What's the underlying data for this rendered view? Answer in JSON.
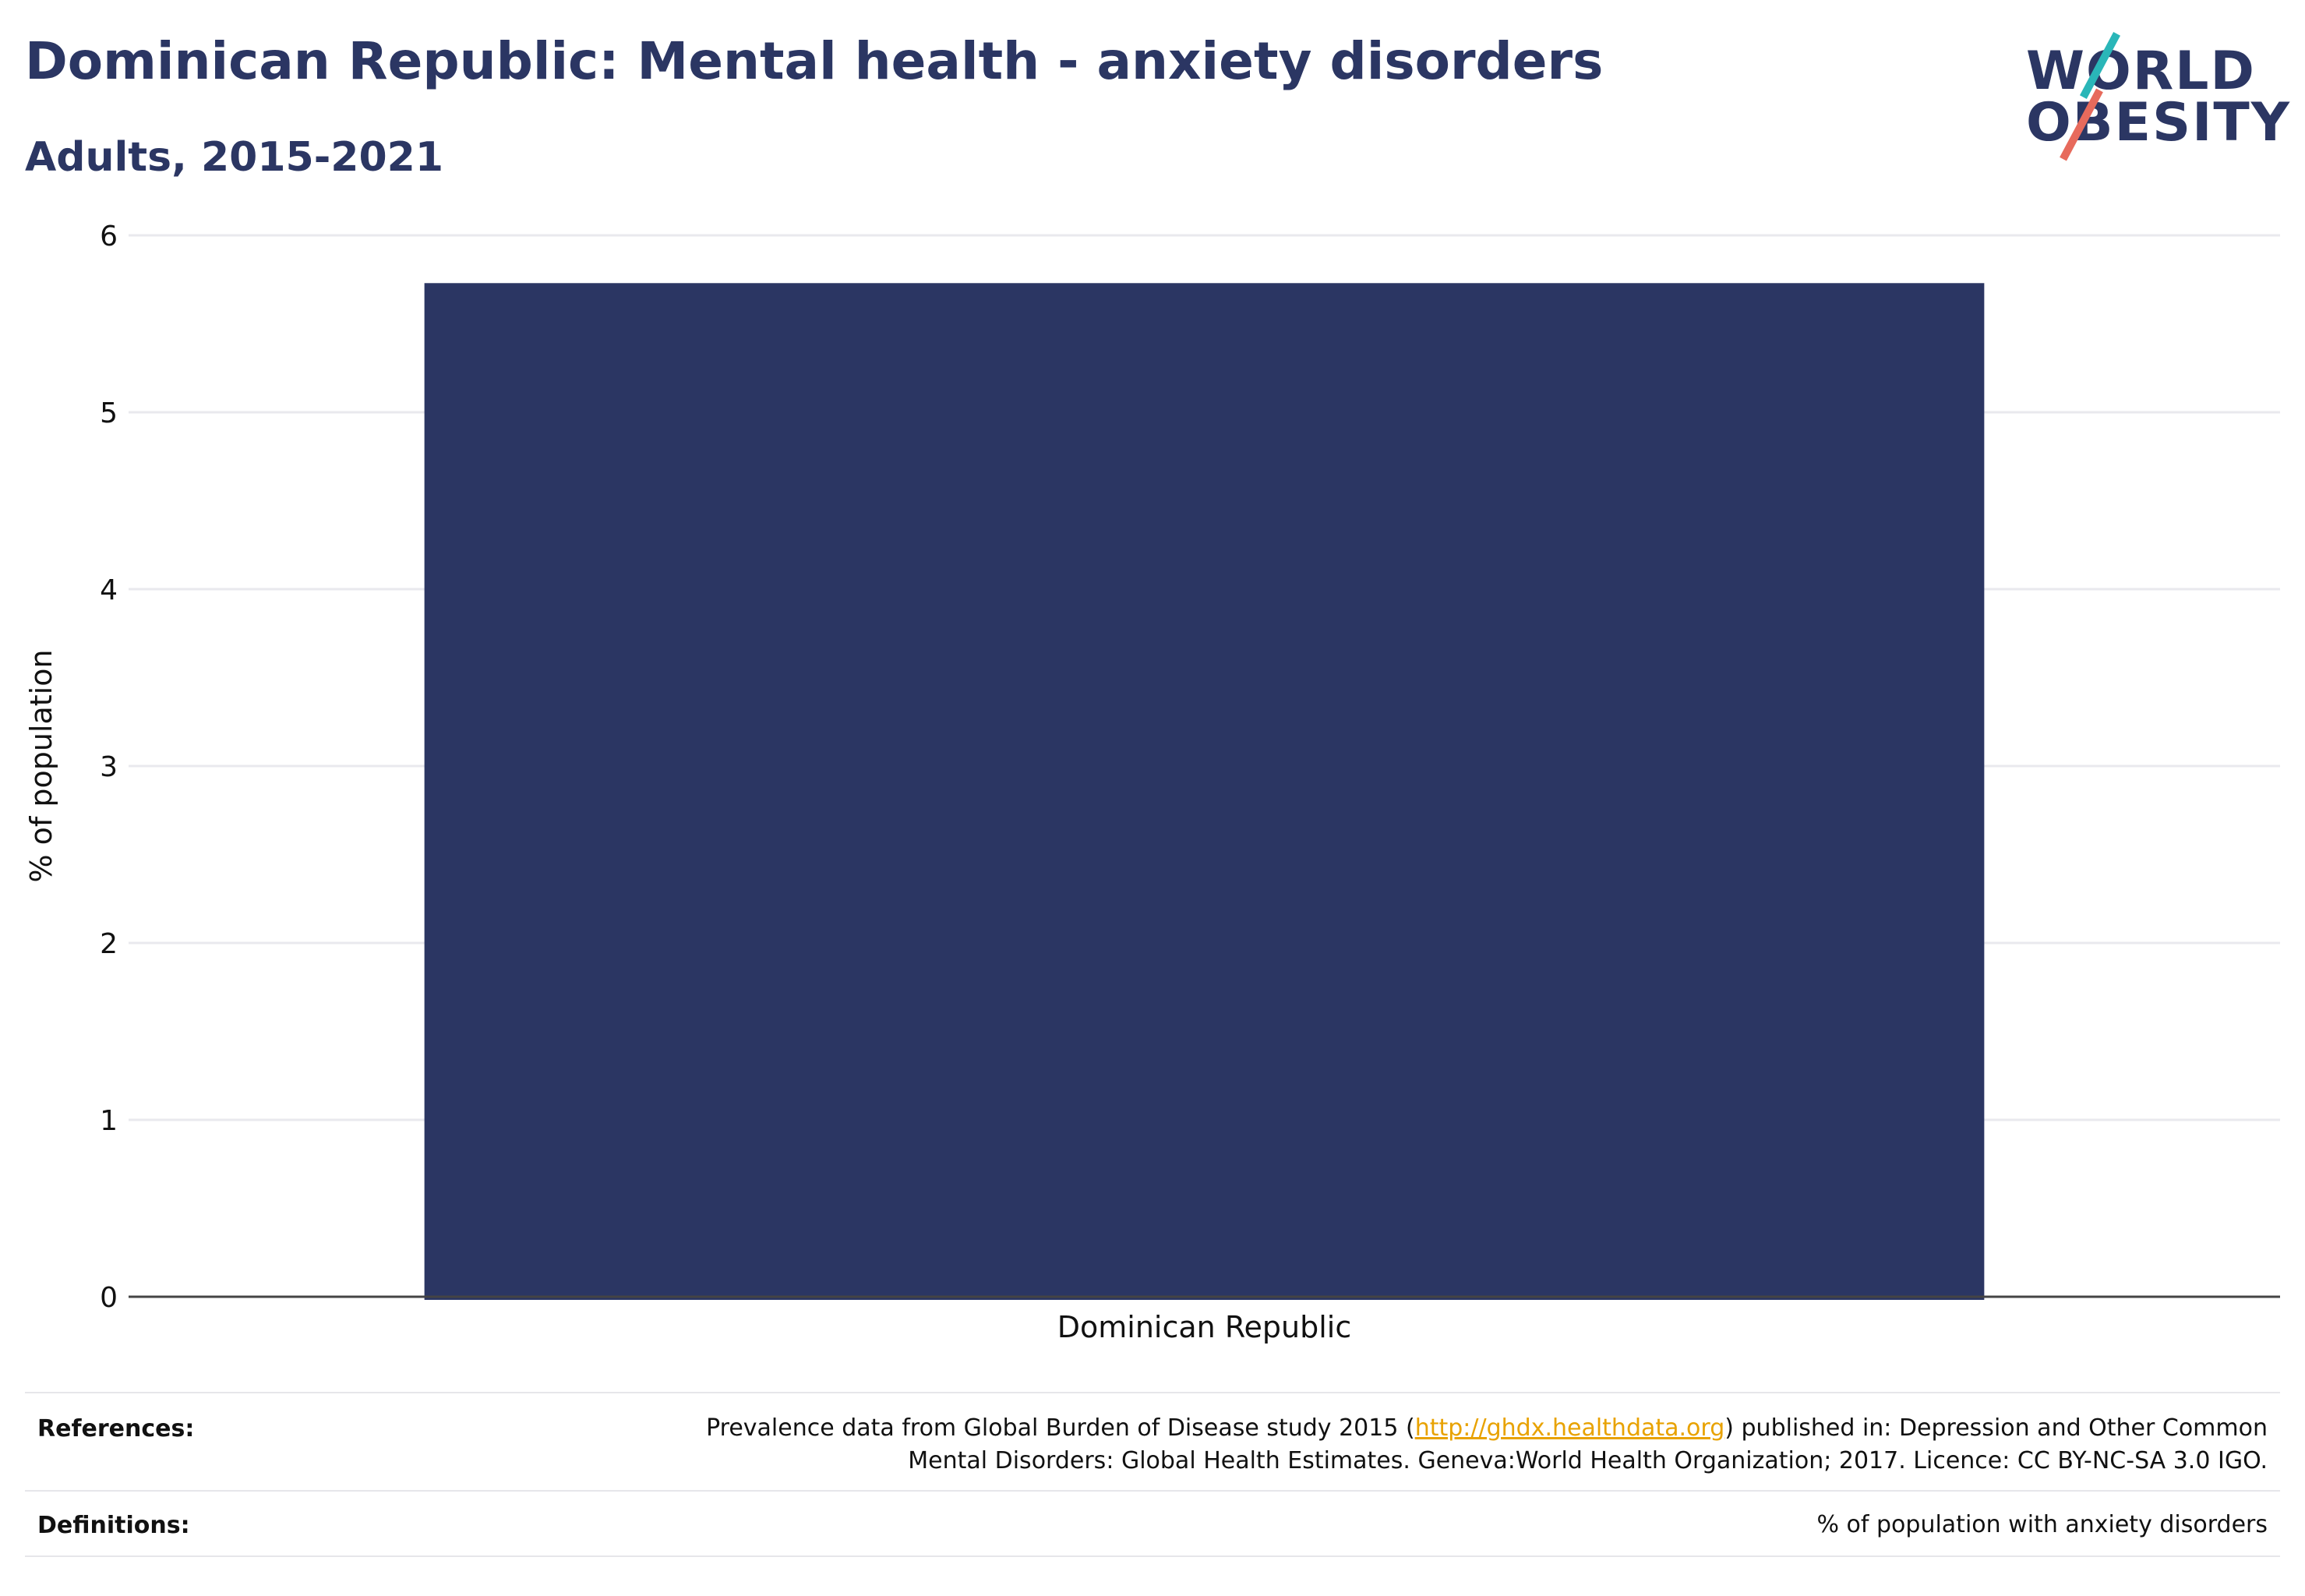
{
  "header": {
    "title": "Dominican Republic: Mental health - anxiety disorders",
    "subtitle": "Adults, 2015-2021"
  },
  "logo": {
    "line1": "WORLD",
    "line2": "OBESITY",
    "colors": {
      "text": "#2b3663",
      "slash_top": "#2ab6b8",
      "slash_bottom": "#e76a5c"
    }
  },
  "chart_data": {
    "type": "bar",
    "categories": [
      "Dominican Republic"
    ],
    "values": [
      5.73
    ],
    "title": "Dominican Republic: Mental health - anxiety disorders",
    "subtitle": "Adults, 2015-2021",
    "xlabel": "",
    "ylabel": "% of population",
    "ylim": [
      0,
      6
    ],
    "yticks": [
      0,
      1,
      2,
      3,
      4,
      5,
      6
    ],
    "grid": true,
    "legend": "none",
    "bar_color": "#2b3663"
  },
  "footer": {
    "references_label": "References:",
    "references_text_before": "Prevalence data from Global Burden of Disease study 2015 (",
    "references_link": "http://ghdx.healthdata.org",
    "references_text_after": ") published in: Depression and Other Common Mental Disorders: Global Health Estimates. Geneva:World Health Organization; 2017. Licence: CC BY-NC-SA 3.0 IGO.",
    "definitions_label": "Definitions:",
    "definitions_text": "% of population with anxiety disorders"
  }
}
